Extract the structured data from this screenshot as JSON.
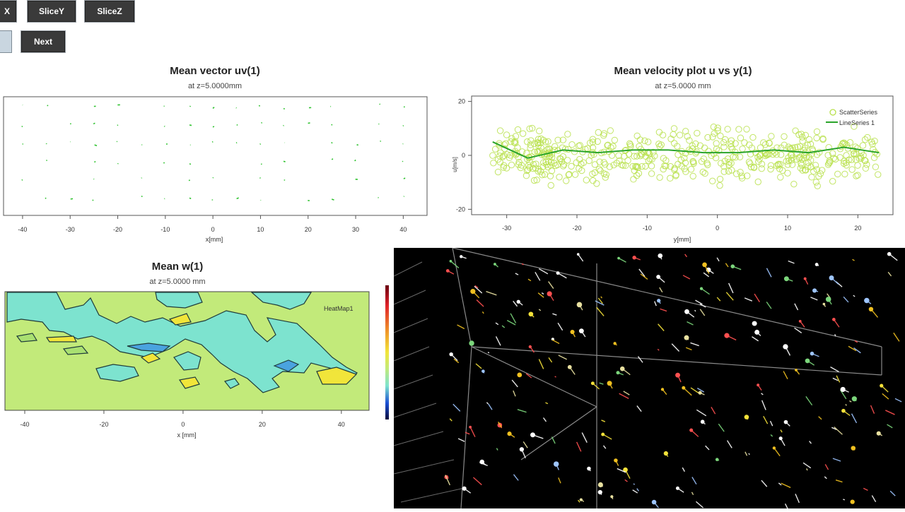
{
  "toolbar": {
    "row1": [
      {
        "label": "X",
        "name": "slicex-button"
      },
      {
        "label": "SliceY",
        "name": "slicey-button"
      },
      {
        "label": "SliceZ",
        "name": "slicez-button"
      }
    ],
    "row2": [
      {
        "label": "",
        "name": "previous-button"
      },
      {
        "label": "Next",
        "name": "next-button"
      }
    ]
  },
  "panels": {
    "vector": {
      "title": "Mean vector uv(1)",
      "subtitle": "at z=5.0000mm",
      "xlabel": "x[mm]",
      "xticks": [
        "-40",
        "-30",
        "-20",
        "-10",
        "0",
        "10",
        "20",
        "30",
        "40"
      ]
    },
    "velocity": {
      "title": "Mean velocity plot u vs y(1)",
      "subtitle": "at z=5.0000 mm",
      "xlabel": "y[mm]",
      "ylabel": "u[m/s]",
      "xticks": [
        "-30",
        "-20",
        "-10",
        "0",
        "10",
        "20"
      ],
      "yticks": [
        "20",
        "0",
        "-20"
      ],
      "legend": [
        "ScatterSeries",
        "LineSeries 1"
      ]
    },
    "heat": {
      "title": "Mean w(1)",
      "subtitle": "at z=5.0000 mm",
      "xlabel": "x [mm]",
      "xticks": [
        "-40",
        "-20",
        "0",
        "20",
        "40"
      ],
      "legend": "HeatMap1"
    }
  },
  "colors": {
    "button_dark": "#3a3a3a",
    "vector_green": "#2ec22e",
    "scatter_green": "#b7e04a",
    "line_green": "#2aa42a",
    "heat_base": "#c2ea7a",
    "heat_cyan": "#7de3cf",
    "heat_yellow": "#f1e53a",
    "view_bg": "#000000"
  },
  "chart_data": [
    {
      "type": "scatter",
      "title": "Mean vector uv(1)",
      "xlabel": "x[mm]",
      "xlim": [
        -44,
        45
      ],
      "x": [
        -40,
        -35,
        -30,
        -25,
        -20,
        -15,
        -10,
        -5,
        0,
        5,
        10,
        15,
        20,
        25,
        30,
        35,
        40
      ]
    },
    {
      "type": "line",
      "title": "Mean velocity plot u vs y(1)",
      "xlabel": "y[mm]",
      "ylabel": "u[m/s]",
      "xlim": [
        -35,
        25
      ],
      "ylim": [
        -22,
        22
      ],
      "series": [
        {
          "name": "LineSeries 1",
          "x": [
            -32,
            -27,
            -22,
            -17,
            -12,
            -7,
            -2,
            3,
            8,
            13,
            18,
            23
          ],
          "y": [
            5,
            -1,
            2,
            1,
            2,
            2,
            1,
            1,
            2,
            1,
            3,
            1
          ]
        },
        {
          "name": "ScatterSeries",
          "x": [],
          "y": []
        }
      ]
    },
    {
      "type": "heatmap",
      "title": "Mean w(1)",
      "xlabel": "x [mm]",
      "xlim": [
        -45,
        47
      ],
      "legend": "HeatMap1"
    }
  ]
}
